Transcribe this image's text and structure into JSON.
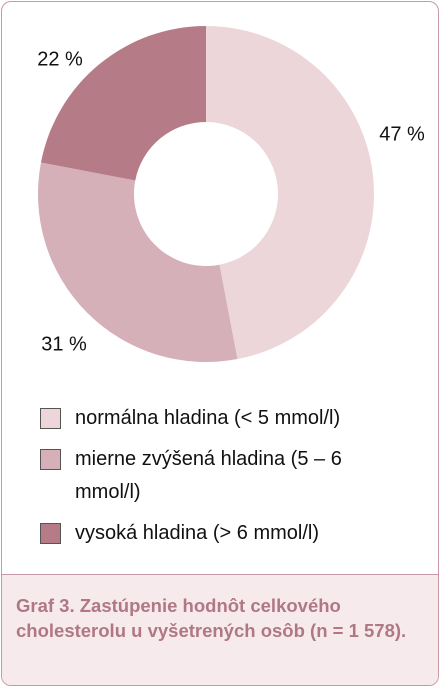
{
  "chart_data": {
    "type": "donut",
    "categories": [
      "normálna hladina (< 5 mmol/l)",
      "mierne zvýšená hladina (5 – 6 mmol/l)",
      "vysoká hladina (> 6 mmol/l)"
    ],
    "values": [
      47,
      31,
      22
    ],
    "value_labels": [
      "47 %",
      "31 %",
      "22 %"
    ],
    "colors": [
      "#ecd6da",
      "#d6b0b8",
      "#b57c88"
    ],
    "caption": "Graf 3. Zastúpenie hodnôt celkového cholesterolu u vyšetrených osôb (n = 1 578)."
  }
}
